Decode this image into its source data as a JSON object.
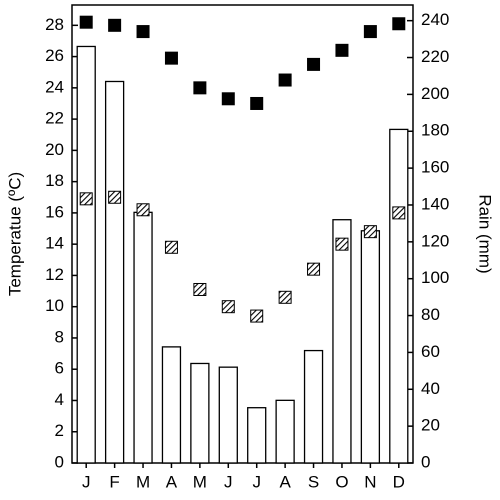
{
  "chart_data": {
    "type": "combo",
    "categories": [
      "J",
      "F",
      "M",
      "A",
      "M",
      "J",
      "J",
      "A",
      "S",
      "O",
      "N",
      "D"
    ],
    "y_label": "Temperatue (ºC)",
    "y2_label": "Rain (mm)",
    "ylim": [
      0,
      29.3
    ],
    "yticks": [
      0,
      2,
      4,
      6,
      8,
      10,
      12,
      14,
      16,
      18,
      20,
      22,
      24,
      26,
      28
    ],
    "y2lim": [
      0,
      248.5
    ],
    "y2ticks": [
      0,
      20,
      40,
      60,
      80,
      100,
      120,
      140,
      160,
      180,
      200,
      220,
      240
    ],
    "series": [
      {
        "type": "bar",
        "axis": "y2",
        "color": "#ffffff",
        "values": [
          226,
          207,
          136,
          63,
          54,
          52,
          30,
          34,
          61,
          132,
          126,
          181
        ]
      },
      {
        "type": "scatter",
        "marker": "filled",
        "color": "#000000",
        "values": [
          28.2,
          28.0,
          27.6,
          25.9,
          24.0,
          23.3,
          23.0,
          24.5,
          25.5,
          26.4,
          27.6,
          28.1
        ]
      },
      {
        "type": "scatter",
        "marker": "hatched",
        "color": "#000000",
        "values": [
          16.9,
          17.0,
          16.2,
          13.8,
          11.1,
          10.0,
          9.4,
          10.6,
          12.4,
          14.0,
          14.8,
          16.0
        ]
      }
    ]
  }
}
